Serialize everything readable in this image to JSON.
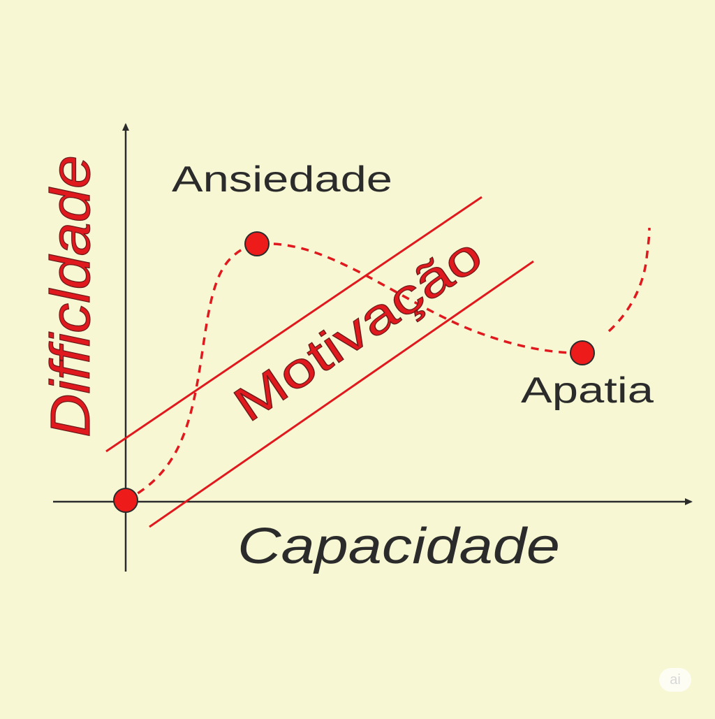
{
  "diagram": {
    "y_axis_label": "Difficldade",
    "x_axis_label": "Capacidade",
    "zone_label": "Motivação",
    "points": {
      "upper_label": "Ansiedade",
      "lower_label": "Apatia"
    }
  },
  "watermark": "ai",
  "colors": {
    "background": "#f7f7d4",
    "accent_red": "#e0191e",
    "axis": "#2b2b2b"
  }
}
